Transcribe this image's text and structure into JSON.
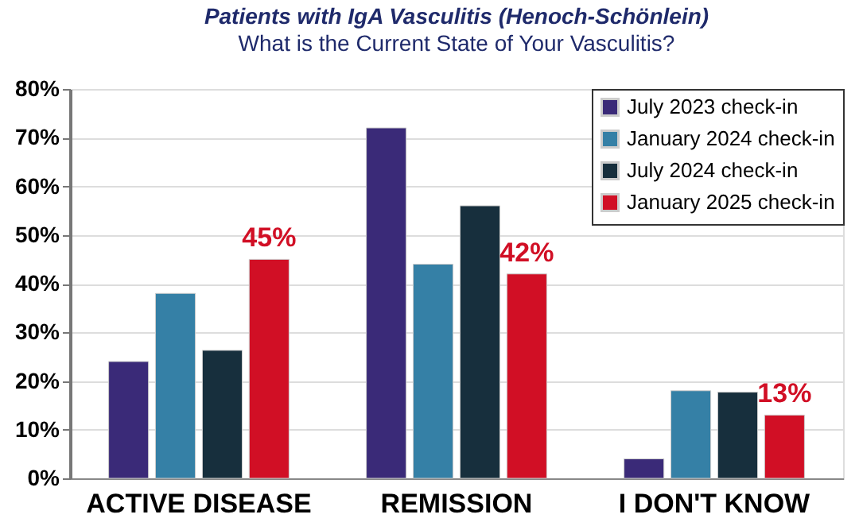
{
  "chart_data": {
    "type": "bar",
    "title": "Patients with IgA Vasculitis (Henoch-Schönlein)",
    "subtitle": "What is the Current State of Your Vasculitis?",
    "categories": [
      "ACTIVE DISEASE",
      "REMISSION",
      "I DON'T KNOW"
    ],
    "series": [
      {
        "name": "July 2023 check-in",
        "color": "#3a2a78",
        "values": [
          24,
          72,
          4
        ]
      },
      {
        "name": "January 2024 check-in",
        "color": "#3580a6",
        "values": [
          38,
          44,
          18
        ]
      },
      {
        "name": "July 2024 check-in",
        "color": "#172f3d",
        "values": [
          26.3,
          56,
          17.7
        ]
      },
      {
        "name": "January 2025 check-in",
        "color": "#d10f25",
        "values": [
          45,
          42,
          13
        ],
        "value_labels": [
          "45%",
          "42%",
          "13%"
        ]
      }
    ],
    "ylim": [
      0,
      80
    ],
    "yticks": [
      {
        "value": 0,
        "label": "0%"
      },
      {
        "value": 10,
        "label": "10%"
      },
      {
        "value": 20,
        "label": "20%"
      },
      {
        "value": 30,
        "label": "30%"
      },
      {
        "value": 40,
        "label": "40%"
      },
      {
        "value": 50,
        "label": "50%"
      },
      {
        "value": 60,
        "label": "60%"
      },
      {
        "value": 70,
        "label": "70%"
      },
      {
        "value": 80,
        "label": "80%"
      }
    ],
    "grid": "y",
    "legend": "top right"
  }
}
